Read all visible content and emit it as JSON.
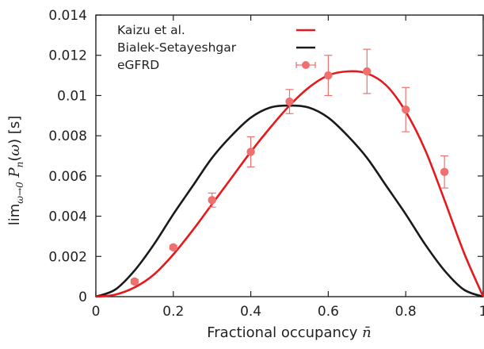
{
  "chart_data": {
    "type": "line",
    "title": "",
    "xlabel": "Fractional occupancy n̄",
    "ylabel": "lim ω→0  Pn(ω) [s]",
    "xlim": [
      0,
      1
    ],
    "ylim": [
      0,
      0.014
    ],
    "x_ticks": [
      0,
      0.2,
      0.4,
      0.6,
      0.8,
      1
    ],
    "x_tick_labels": [
      "0",
      "0.2",
      "0.4",
      "0.6",
      "0.8",
      "1"
    ],
    "y_ticks": [
      0,
      0.002,
      0.004,
      0.006,
      0.008,
      0.01,
      0.012,
      0.014
    ],
    "y_tick_labels": [
      "0",
      "0.002",
      "0.004",
      "0.006",
      "0.008",
      "0.01",
      "0.012",
      "0.014"
    ],
    "grid": false,
    "legend_position": "top-left",
    "series": [
      {
        "name": "Kaizu et al.",
        "kind": "line",
        "color": "#e41a1c",
        "x": [
          0,
          0.05,
          0.1,
          0.15,
          0.2,
          0.25,
          0.3,
          0.35,
          0.4,
          0.45,
          0.5,
          0.55,
          0.6,
          0.65,
          0.7,
          0.75,
          0.8,
          0.85,
          0.9,
          0.95,
          1
        ],
        "y": [
          0,
          0.0001,
          0.00046,
          0.0011,
          0.0021,
          0.0033,
          0.0046,
          0.0059,
          0.0072,
          0.0084,
          0.0095,
          0.0104,
          0.011,
          0.0112,
          0.0111,
          0.0105,
          0.0092,
          0.0073,
          0.0048,
          0.0022,
          0
        ]
      },
      {
        "name": "Bialek-Setayeshgar",
        "kind": "line",
        "color": "#1a1a1a",
        "x": [
          0,
          0.05,
          0.1,
          0.15,
          0.2,
          0.25,
          0.3,
          0.35,
          0.4,
          0.45,
          0.5,
          0.55,
          0.6,
          0.65,
          0.7,
          0.75,
          0.8,
          0.85,
          0.9,
          0.95,
          1
        ],
        "y": [
          0,
          0.00035,
          0.0013,
          0.0026,
          0.0041,
          0.0055,
          0.0069,
          0.008,
          0.0089,
          0.0094,
          0.0095,
          0.0094,
          0.0089,
          0.008,
          0.0069,
          0.0055,
          0.0041,
          0.0026,
          0.0013,
          0.00035,
          0
        ]
      },
      {
        "name": "eGFRD",
        "kind": "scatter-errorbar",
        "color": "#f07070",
        "x": [
          0.1,
          0.2,
          0.3,
          0.4,
          0.5,
          0.6,
          0.7,
          0.8,
          0.9
        ],
        "y": [
          0.00075,
          0.00245,
          0.0048,
          0.0072,
          0.0097,
          0.011,
          0.0112,
          0.0093,
          0.0062
        ],
        "err": [
          0.0001,
          0.0001,
          0.00035,
          0.00075,
          0.0006,
          0.001,
          0.0011,
          0.0011,
          0.0008
        ]
      }
    ]
  }
}
